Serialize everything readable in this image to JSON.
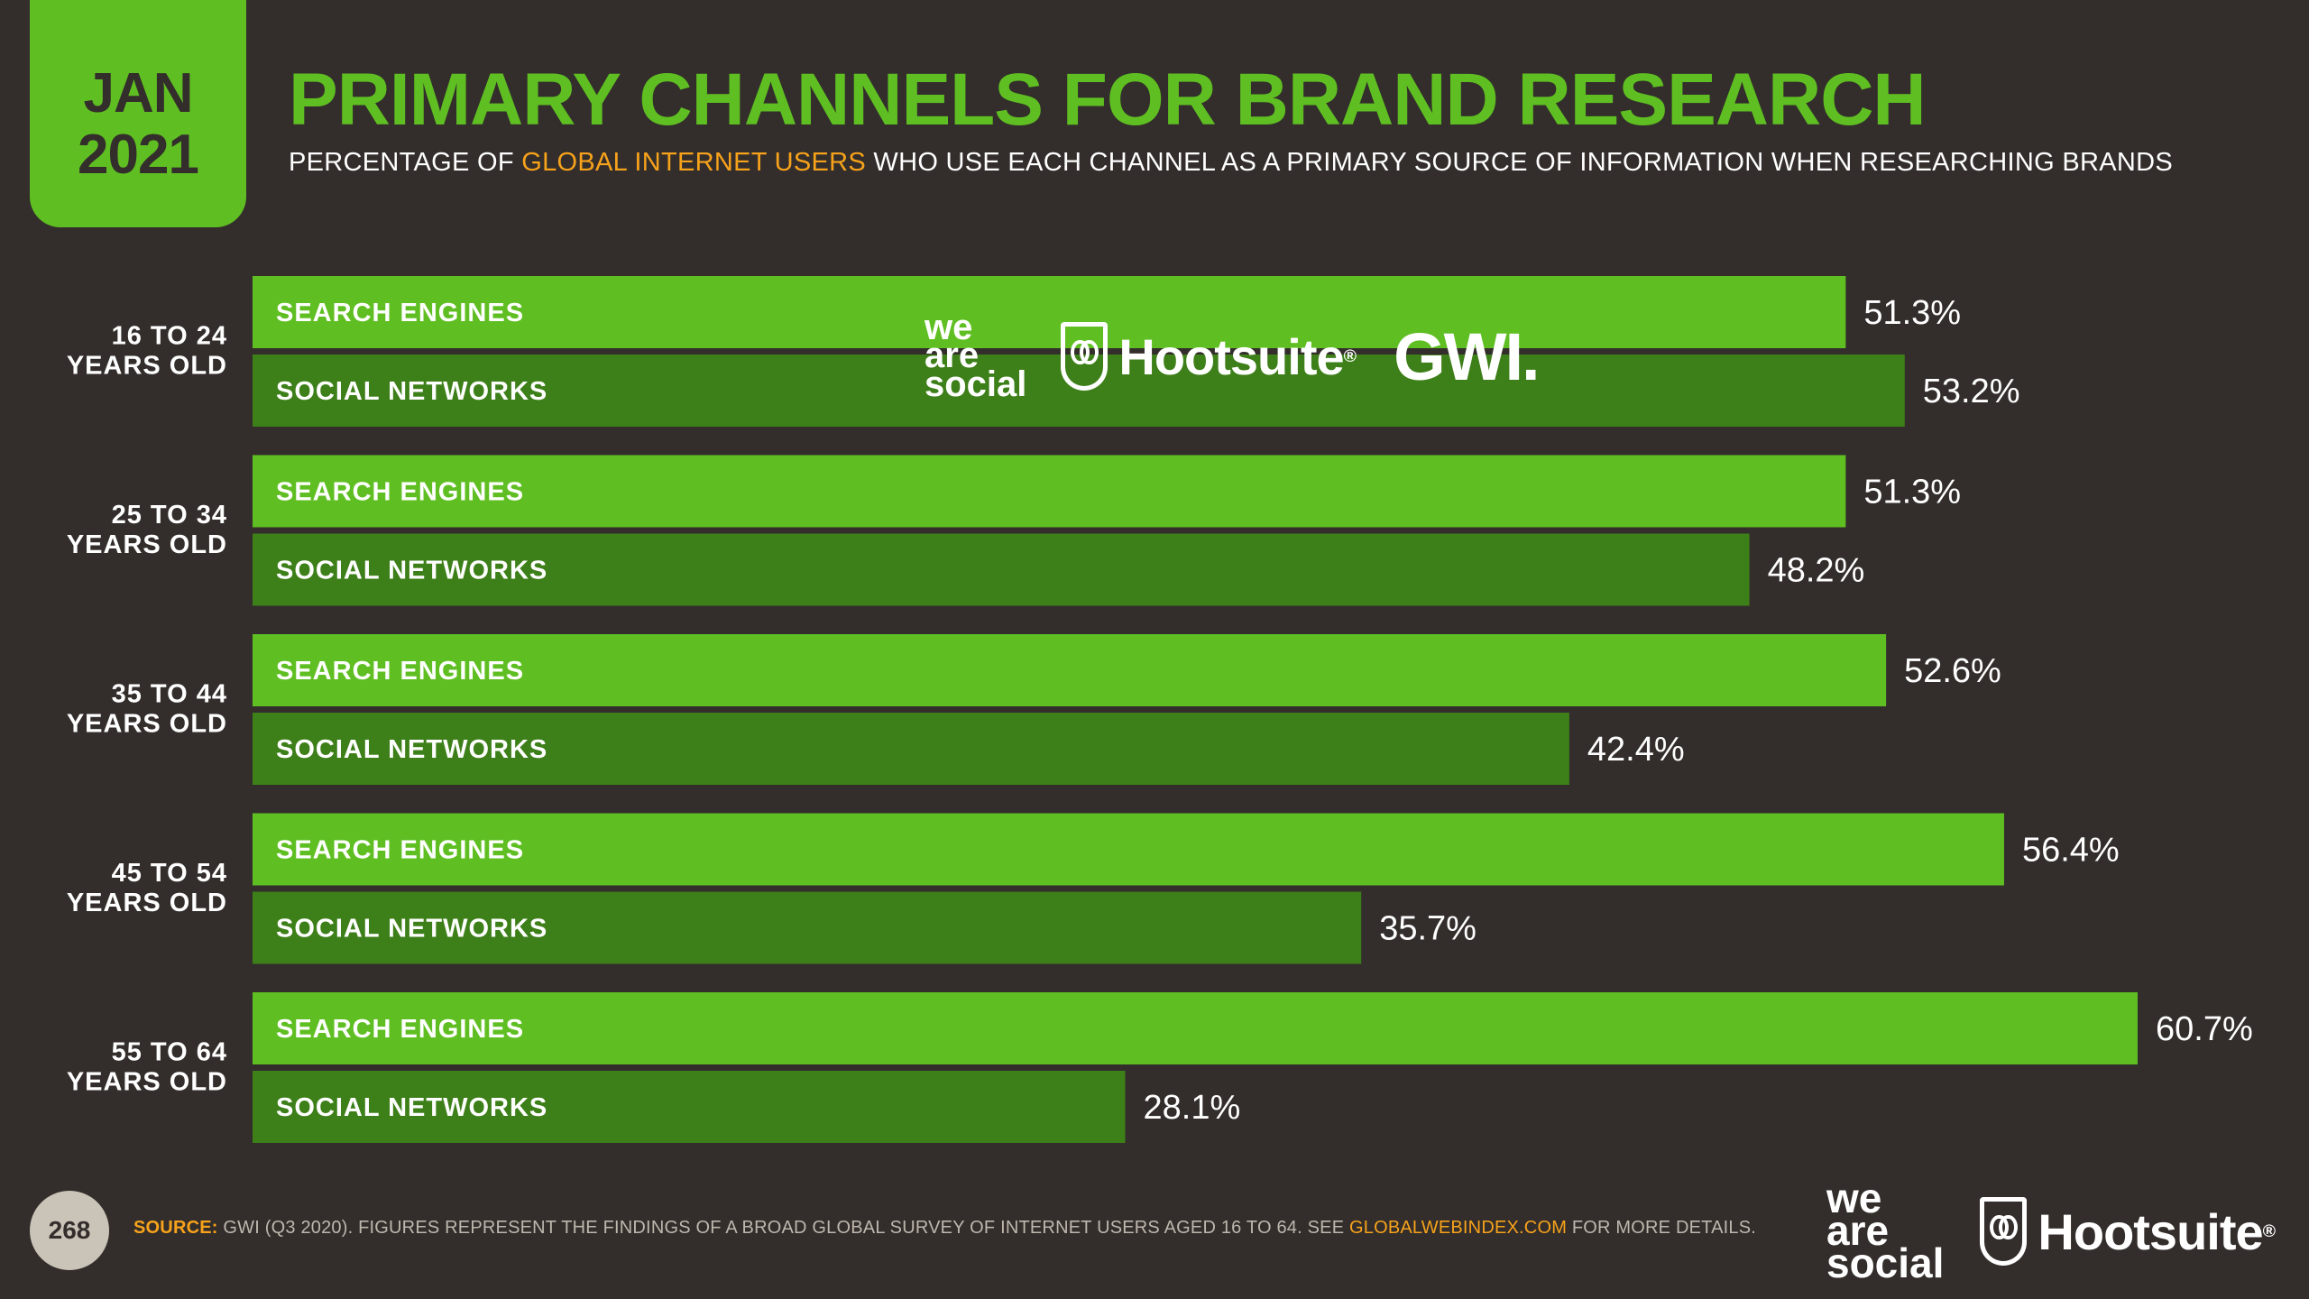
{
  "badge": {
    "month": "JAN",
    "year": "2021"
  },
  "title": "PRIMARY CHANNELS FOR BRAND RESEARCH",
  "subtitle": {
    "pre": "PERCENTAGE OF ",
    "highlight": "GLOBAL INTERNET USERS",
    "post": " WHO USE EACH CHANNEL AS A PRIMARY SOURCE OF INFORMATION WHEN RESEARCHING BRANDS"
  },
  "colors": {
    "background": "#332e2b",
    "accent_green": "#5fbf22",
    "search_bar": "#5fbf22",
    "social_bar": "#3d7f18",
    "highlight_orange": "#f7a21b"
  },
  "logos": {
    "we_are_social": [
      "we",
      "are",
      "social"
    ],
    "hootsuite": "Hootsuite",
    "gwi": "GWI."
  },
  "chart_data": {
    "type": "bar",
    "orientation": "horizontal",
    "categories": [
      "16 TO 24 YEARS OLD",
      "25 TO 34 YEARS OLD",
      "35 TO 44 YEARS OLD",
      "45 TO 54 YEARS OLD",
      "55 TO 64 YEARS OLD"
    ],
    "category_lines": [
      [
        "16 TO 24",
        "YEARS OLD"
      ],
      [
        "25 TO 34",
        "YEARS OLD"
      ],
      [
        "35 TO 44",
        "YEARS OLD"
      ],
      [
        "45 TO 54",
        "YEARS OLD"
      ],
      [
        "55 TO 64",
        "YEARS OLD"
      ]
    ],
    "series": [
      {
        "name": "SEARCH ENGINES",
        "color": "#5fbf22",
        "values": [
          51.3,
          51.3,
          52.6,
          56.4,
          60.7
        ]
      },
      {
        "name": "SOCIAL NETWORKS",
        "color": "#3d7f18",
        "values": [
          53.2,
          48.2,
          42.4,
          35.7,
          28.1
        ]
      }
    ],
    "value_suffix": "%",
    "xlim": [
      0,
      65
    ],
    "grid": false,
    "legend": "none"
  },
  "footer": {
    "page_number": "268",
    "source_label": "SOURCE:",
    "source_text": " GWI (Q3 2020). FIGURES REPRESENT THE FINDINGS OF A BROAD GLOBAL SURVEY OF INTERNET USERS AGED 16 TO 64. SEE ",
    "source_url": "GLOBALWEBINDEX.COM",
    "source_tail": " FOR MORE DETAILS."
  }
}
